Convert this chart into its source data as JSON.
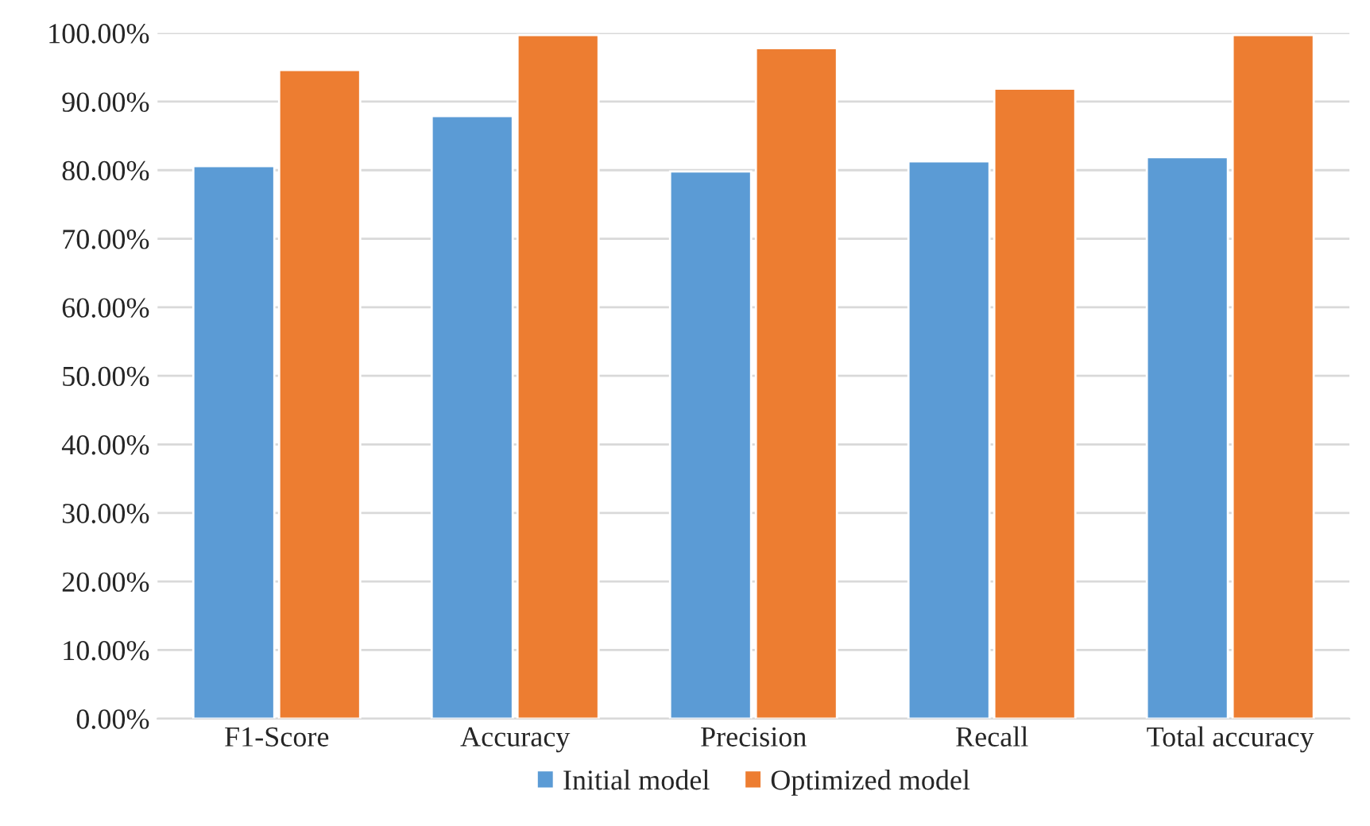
{
  "chart_data": {
    "type": "bar",
    "categories": [
      "F1-Score",
      "Accuracy",
      "Precision",
      "Recall",
      "Total accuracy"
    ],
    "series": [
      {
        "name": "Initial model",
        "color": "#5b9bd5",
        "values": [
          80.6,
          87.9,
          79.8,
          81.3,
          81.9
        ]
      },
      {
        "name": "Optimized model",
        "color": "#ed7d31",
        "values": [
          94.6,
          99.7,
          97.8,
          91.9,
          99.7
        ]
      }
    ],
    "ylim": [
      0,
      100
    ],
    "yticks": [
      {
        "value": 0,
        "label": "0.00%"
      },
      {
        "value": 10,
        "label": "10.00%"
      },
      {
        "value": 20,
        "label": "20.00%"
      },
      {
        "value": 30,
        "label": "30.00%"
      },
      {
        "value": 40,
        "label": "40.00%"
      },
      {
        "value": 50,
        "label": "50.00%"
      },
      {
        "value": 60,
        "label": "60.00%"
      },
      {
        "value": 70,
        "label": "70.00%"
      },
      {
        "value": 80,
        "label": "80.00%"
      },
      {
        "value": 90,
        "label": "90.00%"
      },
      {
        "value": 100,
        "label": "100.00%"
      }
    ],
    "grid": "y",
    "legend": "bottom"
  }
}
